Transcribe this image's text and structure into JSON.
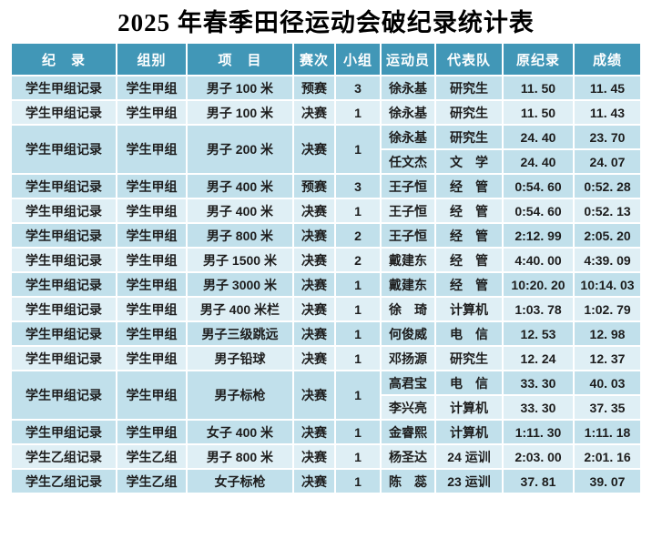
{
  "title": "2025 年春季田径运动会破纪录统计表",
  "colors": {
    "header_bg": "#4197b7",
    "header_text": "#ffffff",
    "row_dark": "#c1e0eb",
    "row_light": "#dfeff5",
    "grid": "#ffffff",
    "body_text": "#1d1d1d"
  },
  "table": {
    "headers": [
      "纪　录",
      "组别",
      "项　目",
      "赛次",
      "小组",
      "运动员",
      "代表队",
      "原纪录",
      "成绩"
    ],
    "rows": [
      {
        "record": "学生甲组记录",
        "group": "学生甲组",
        "event": "男子 100 米",
        "round": "预赛",
        "heat": "3",
        "shade": "dark",
        "entries": [
          {
            "athlete": "徐永基",
            "team": "研究生",
            "old_record": "11. 50",
            "result": "11. 45",
            "shade": "dark"
          }
        ]
      },
      {
        "record": "学生甲组记录",
        "group": "学生甲组",
        "event": "男子 100 米",
        "round": "决赛",
        "heat": "1",
        "shade": "light",
        "entries": [
          {
            "athlete": "徐永基",
            "team": "研究生",
            "old_record": "11. 50",
            "result": "11. 43",
            "shade": "light"
          }
        ]
      },
      {
        "record": "学生甲组记录",
        "group": "学生甲组",
        "event": "男子 200 米",
        "round": "决赛",
        "heat": "1",
        "shade": "dark",
        "entries": [
          {
            "athlete": "徐永基",
            "team": "研究生",
            "old_record": "24. 40",
            "result": "23. 70",
            "shade": "dark"
          },
          {
            "athlete": "任文杰",
            "team": "文　学",
            "old_record": "24. 40",
            "result": "24. 07",
            "shade": "dark"
          }
        ]
      },
      {
        "record": "学生甲组记录",
        "group": "学生甲组",
        "event": "男子 400 米",
        "round": "预赛",
        "heat": "3",
        "shade": "dark",
        "entries": [
          {
            "athlete": "王子恒",
            "team": "经　管",
            "old_record": "0:54. 60",
            "result": "0:52. 28",
            "shade": "dark"
          }
        ]
      },
      {
        "record": "学生甲组记录",
        "group": "学生甲组",
        "event": "男子 400 米",
        "round": "决赛",
        "heat": "1",
        "shade": "light",
        "entries": [
          {
            "athlete": "王子恒",
            "team": "经　管",
            "old_record": "0:54. 60",
            "result": "0:52. 13",
            "shade": "light"
          }
        ]
      },
      {
        "record": "学生甲组记录",
        "group": "学生甲组",
        "event": "男子 800 米",
        "round": "决赛",
        "heat": "2",
        "shade": "dark",
        "entries": [
          {
            "athlete": "王子恒",
            "team": "经　管",
            "old_record": "2:12. 99",
            "result": "2:05. 20",
            "shade": "dark"
          }
        ]
      },
      {
        "record": "学生甲组记录",
        "group": "学生甲组",
        "event": "男子 1500 米",
        "round": "决赛",
        "heat": "2",
        "shade": "light",
        "entries": [
          {
            "athlete": "戴建东",
            "team": "经　管",
            "old_record": "4:40. 00",
            "result": "4:39. 09",
            "shade": "light"
          }
        ]
      },
      {
        "record": "学生甲组记录",
        "group": "学生甲组",
        "event": "男子 3000 米",
        "round": "决赛",
        "heat": "1",
        "shade": "dark",
        "entries": [
          {
            "athlete": "戴建东",
            "team": "经　管",
            "old_record": "10:20. 20",
            "result": "10:14. 03",
            "shade": "dark"
          }
        ]
      },
      {
        "record": "学生甲组记录",
        "group": "学生甲组",
        "event": "男子 400 米栏",
        "round": "决赛",
        "heat": "1",
        "shade": "light",
        "entries": [
          {
            "athlete": "徐　琦",
            "team": "计算机",
            "old_record": "1:03. 78",
            "result": "1:02. 79",
            "shade": "light"
          }
        ]
      },
      {
        "record": "学生甲组记录",
        "group": "学生甲组",
        "event": "男子三级跳远",
        "round": "决赛",
        "heat": "1",
        "shade": "dark",
        "entries": [
          {
            "athlete": "何俊威",
            "team": "电　信",
            "old_record": "12. 53",
            "result": "12. 98",
            "shade": "dark"
          }
        ]
      },
      {
        "record": "学生甲组记录",
        "group": "学生甲组",
        "event": "男子铅球",
        "round": "决赛",
        "heat": "1",
        "shade": "light",
        "entries": [
          {
            "athlete": "邓扬源",
            "team": "研究生",
            "old_record": "12. 24",
            "result": "12. 37",
            "shade": "light"
          }
        ]
      },
      {
        "record": "学生甲组记录",
        "group": "学生甲组",
        "event": "男子标枪",
        "round": "决赛",
        "heat": "1",
        "shade": "dark",
        "entries": [
          {
            "athlete": "高君宝",
            "team": "电　信",
            "old_record": "33. 30",
            "result": "40. 03",
            "shade": "dark"
          },
          {
            "athlete": "李兴亮",
            "team": "计算机",
            "old_record": "33. 30",
            "result": "37. 35",
            "shade": "light"
          }
        ]
      },
      {
        "record": "学生甲组记录",
        "group": "学生甲组",
        "event": "女子 400 米",
        "round": "决赛",
        "heat": "1",
        "shade": "dark",
        "entries": [
          {
            "athlete": "金睿熙",
            "team": "计算机",
            "old_record": "1:11. 30",
            "result": "1:11. 18",
            "shade": "dark"
          }
        ]
      },
      {
        "record": "学生乙组记录",
        "group": "学生乙组",
        "event": "男子 800 米",
        "round": "决赛",
        "heat": "1",
        "shade": "light",
        "entries": [
          {
            "athlete": "杨圣达",
            "team": "24 运训",
            "old_record": "2:03. 00",
            "result": "2:01. 16",
            "shade": "light"
          }
        ]
      },
      {
        "record": "学生乙组记录",
        "group": "学生乙组",
        "event": "女子标枪",
        "round": "决赛",
        "heat": "1",
        "shade": "dark",
        "entries": [
          {
            "athlete": "陈　蕊",
            "team": "23 运训",
            "old_record": "37. 81",
            "result": "39. 07",
            "shade": "dark"
          }
        ]
      }
    ]
  }
}
